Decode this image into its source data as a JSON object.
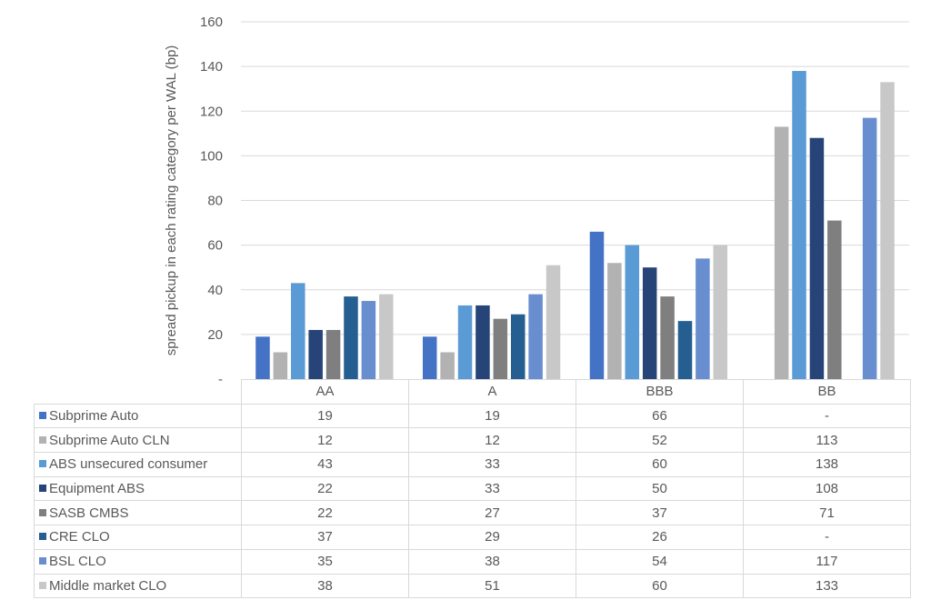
{
  "chart_data": {
    "type": "bar",
    "title": "",
    "xlabel": "",
    "ylabel": "spread pickup in each rating category per WAL (bp)",
    "ylim": [
      0,
      160
    ],
    "yticks": [
      0,
      20,
      40,
      60,
      80,
      100,
      120,
      140,
      160
    ],
    "ytick_labels": [
      "-",
      "20",
      "40",
      "60",
      "80",
      "100",
      "120",
      "140",
      "160"
    ],
    "grid": true,
    "legend": "data-table",
    "categories": [
      "AA",
      "A",
      "BBB",
      "BB"
    ],
    "series": [
      {
        "name": "Subprime Auto",
        "color": "#4472C4",
        "values": [
          19,
          19,
          66,
          null
        ]
      },
      {
        "name": "Subprime Auto CLN",
        "color": "#B2B2B2",
        "values": [
          12,
          12,
          52,
          113
        ]
      },
      {
        "name": "ABS unsecured consumer",
        "color": "#5B9BD5",
        "values": [
          43,
          33,
          60,
          138
        ]
      },
      {
        "name": "Equipment ABS",
        "color": "#264478",
        "values": [
          22,
          33,
          50,
          108
        ]
      },
      {
        "name": "SASB CMBS",
        "color": "#7F7F7F",
        "values": [
          22,
          27,
          37,
          71
        ]
      },
      {
        "name": "CRE CLO",
        "color": "#255E91",
        "values": [
          37,
          29,
          26,
          null
        ]
      },
      {
        "name": "BSL CLO",
        "color": "#698ED0",
        "values": [
          35,
          38,
          54,
          117
        ]
      },
      {
        "name": "Middle market CLO",
        "color": "#C8C8C8",
        "values": [
          38,
          51,
          60,
          133
        ]
      }
    ],
    "missing_label": "-"
  }
}
